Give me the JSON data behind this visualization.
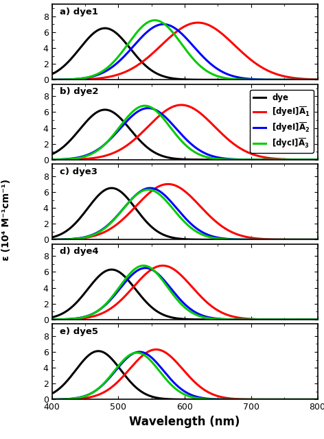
{
  "xlabel": "Wavelength (nm)",
  "ylabel": "ε (10⁴ M⁻¹cm⁻¹)",
  "xlim": [
    400,
    800
  ],
  "ylim": [
    0,
    9.5
  ],
  "yticks": [
    0,
    2,
    4,
    6,
    8
  ],
  "xticks": [
    400,
    500,
    600,
    700,
    800
  ],
  "panel_labels": [
    "a) dye1",
    "b) dye2",
    "c) dye3",
    "d) dye4",
    "e) dye5"
  ],
  "panel_params": [
    {
      "black": [
        480,
        38,
        6.5
      ],
      "red": [
        620,
        55,
        7.2
      ],
      "blue": [
        568,
        45,
        7.0
      ],
      "green": [
        555,
        40,
        7.5
      ]
    },
    {
      "black": [
        480,
        38,
        6.3
      ],
      "red": [
        595,
        50,
        6.9
      ],
      "blue": [
        545,
        42,
        6.5
      ],
      "green": [
        540,
        38,
        6.8
      ]
    },
    {
      "black": [
        490,
        36,
        6.5
      ],
      "red": [
        575,
        48,
        7.0
      ],
      "blue": [
        548,
        40,
        6.5
      ],
      "green": [
        545,
        38,
        6.3
      ]
    },
    {
      "black": [
        490,
        36,
        6.3
      ],
      "red": [
        567,
        44,
        6.8
      ],
      "blue": [
        541,
        38,
        6.5
      ],
      "green": [
        538,
        36,
        6.8
      ]
    },
    {
      "black": [
        470,
        34,
        6.1
      ],
      "red": [
        557,
        40,
        6.3
      ],
      "blue": [
        532,
        36,
        6.0
      ],
      "green": [
        528,
        34,
        5.9
      ]
    }
  ],
  "colors": {
    "black": "#000000",
    "red": "#ff0000",
    "blue": "#0000ff",
    "green": "#00cc00"
  },
  "legend_panel": 1,
  "linewidth": 2.2
}
